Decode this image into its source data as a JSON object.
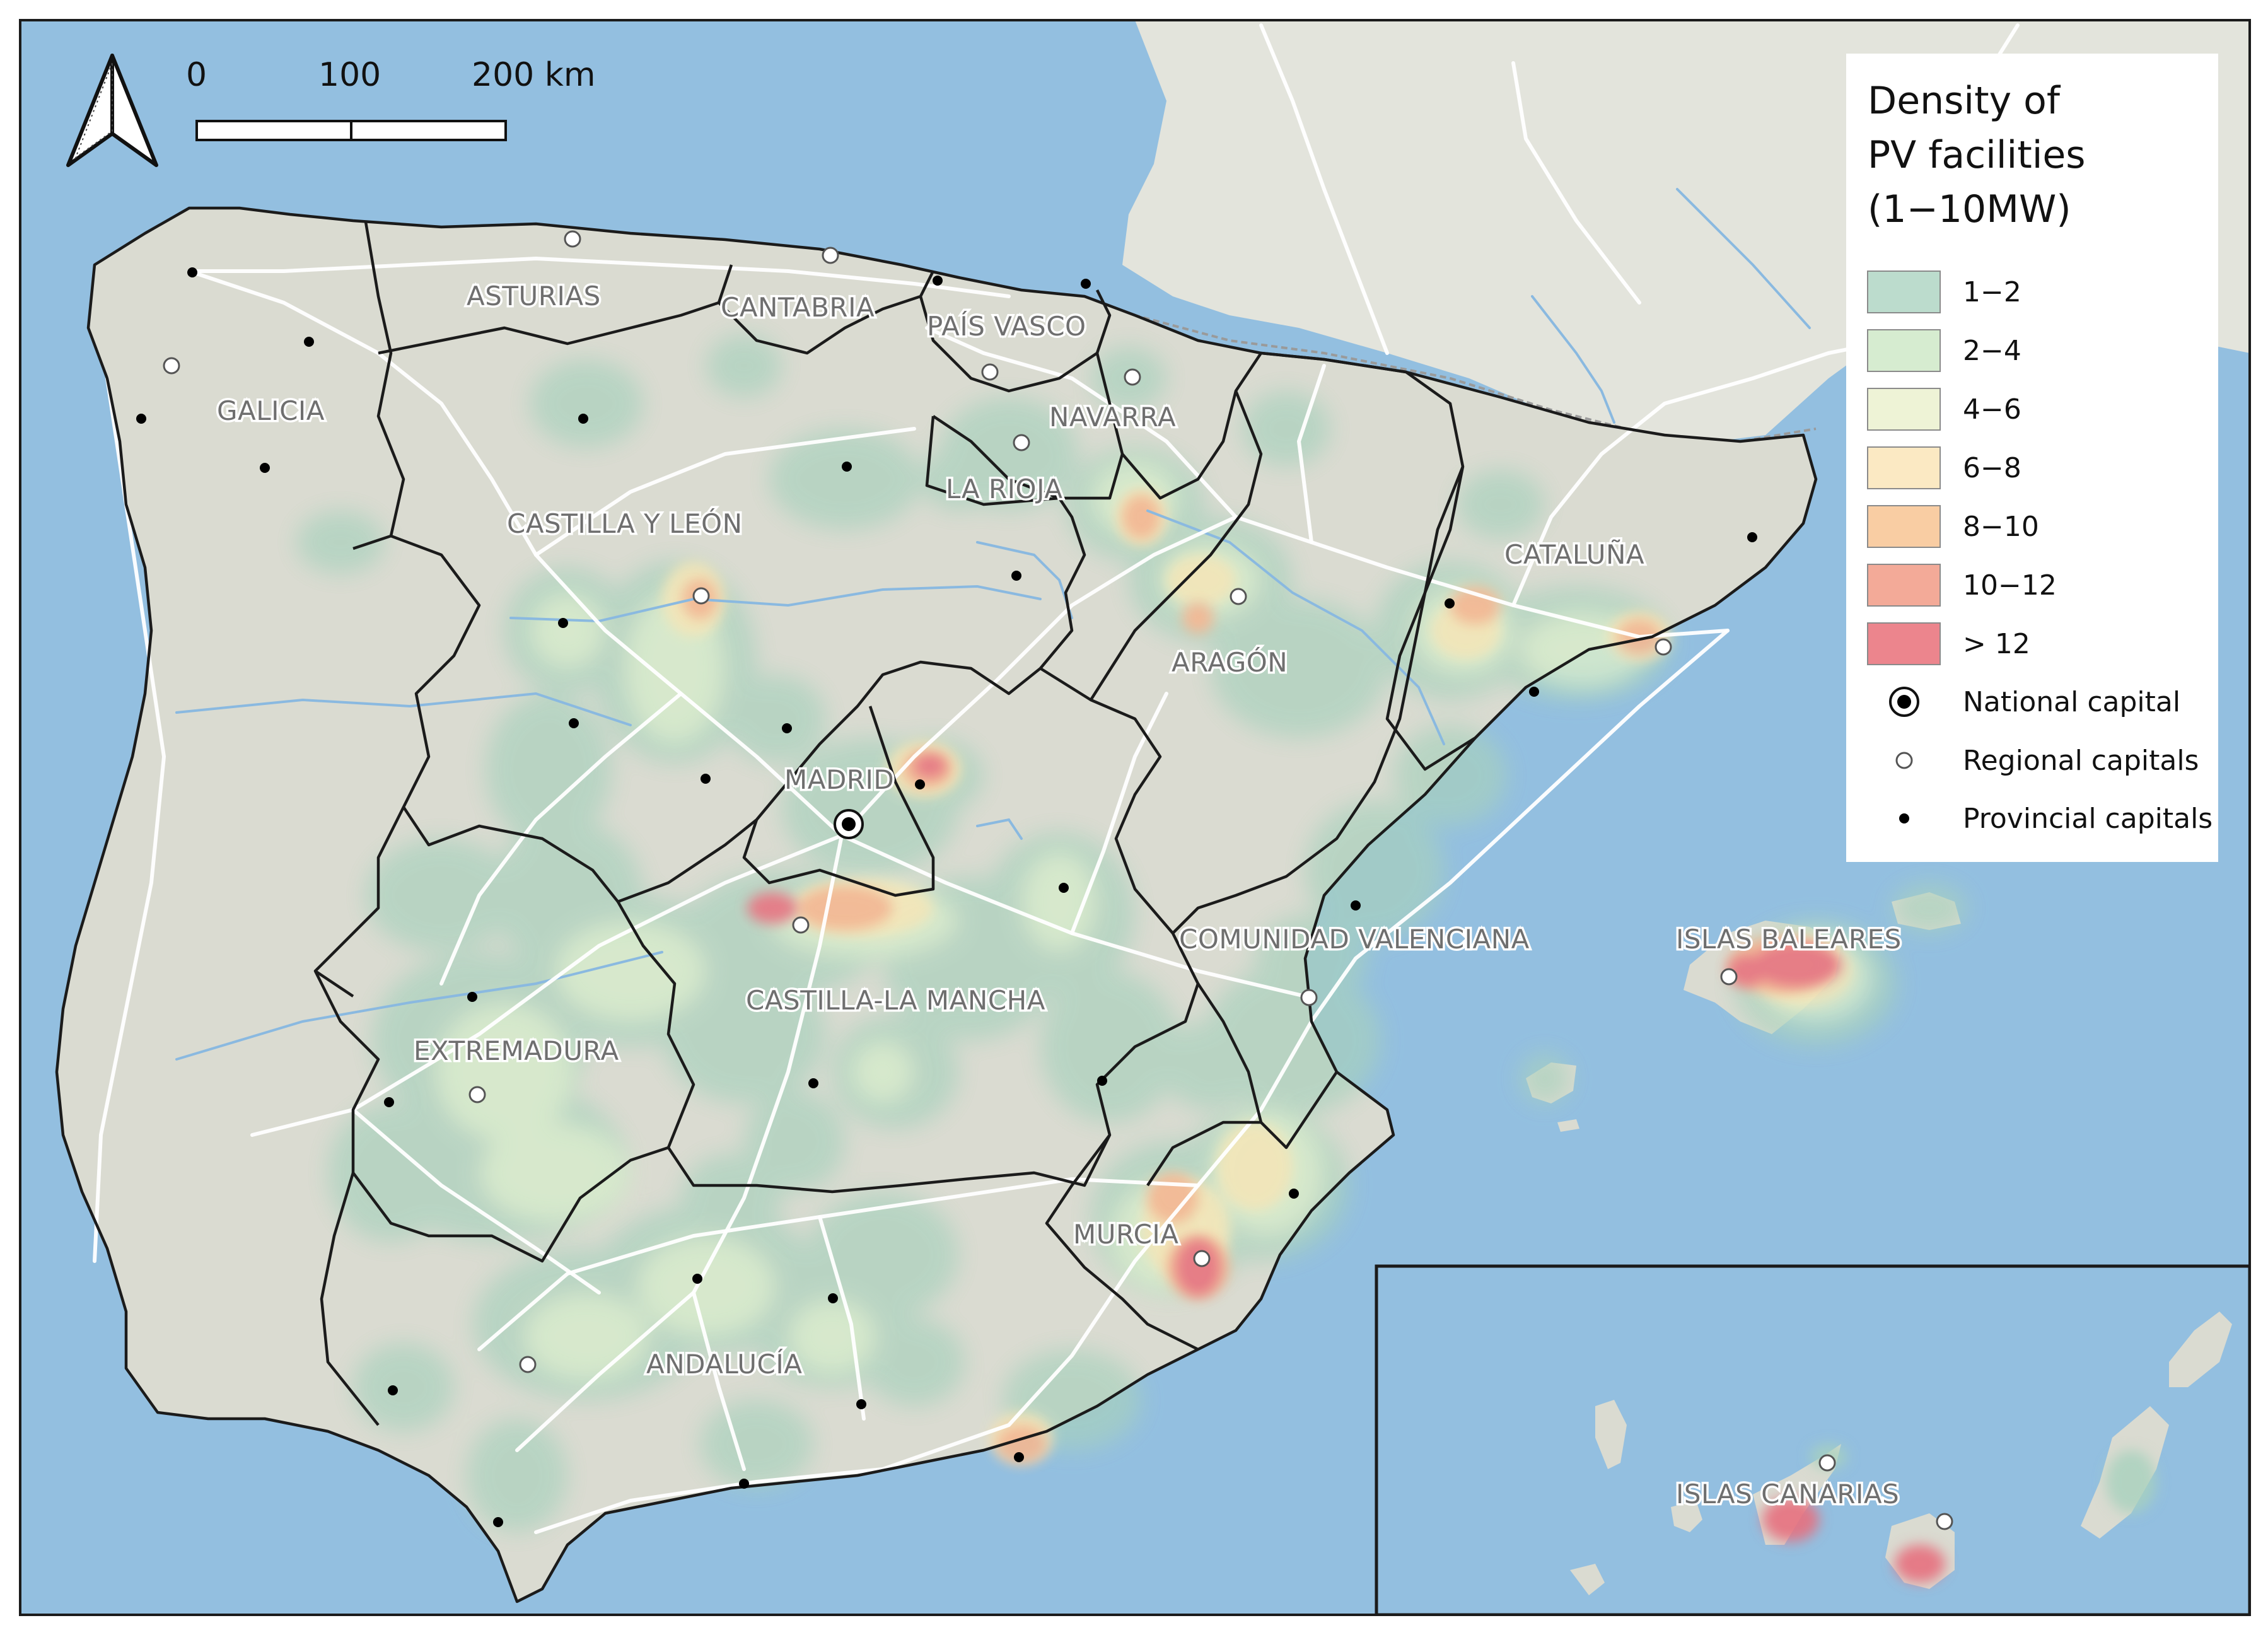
{
  "legend": {
    "title_line1": "Density of",
    "title_line2": "PV facilities",
    "title_line3": "(1−10MW)",
    "classes": [
      {
        "label": "1−2",
        "color": "#bcdccd"
      },
      {
        "label": "2−4",
        "color": "#d6ecd0"
      },
      {
        "label": "4−6",
        "color": "#eef3d6"
      },
      {
        "label": "6−8",
        "color": "#fbe9c3"
      },
      {
        "label": "8−10",
        "color": "#f9cda3"
      },
      {
        "label": "10−12",
        "color": "#f3aa98"
      },
      {
        "label": "> 12",
        "color": "#ec858d"
      }
    ],
    "national_capital": "National capital",
    "regional_capitals": "Regional capitals",
    "provincial_capitals": "Provincial capitals"
  },
  "scale_bar": {
    "label_0": "0",
    "label_100": "100",
    "label_200": "200 km"
  },
  "north_arrow": {
    "icon": "north-arrow-icon"
  },
  "regions": {
    "asturias": "ASTURIAS",
    "cantabria": "CANTABRIA",
    "pais_vasco": "PAÍS VASCO",
    "navarra": "NAVARRA",
    "galicia": "GALICIA",
    "la_rioja": "LA RIOJA",
    "castilla_y_leon": "CASTILLA Y LEÓN",
    "cataluna": "CATALUÑA",
    "aragon": "ARAGÓN",
    "madrid": "MADRID",
    "comunidad_valenciana": "COMUNIDAD VALENCIANA",
    "islas_baleares": "ISLAS BALEARES",
    "castilla_la_mancha": "CASTILLA-LA MANCHA",
    "extremadura": "EXTREMADURA",
    "murcia": "MURCIA",
    "andalucia": "ANDALUCÍA",
    "islas_canarias": "ISLAS CANARIAS"
  },
  "colors": {
    "sea": "#93bfe0",
    "land": "#dadbd1",
    "border": "#1b1b1b"
  }
}
